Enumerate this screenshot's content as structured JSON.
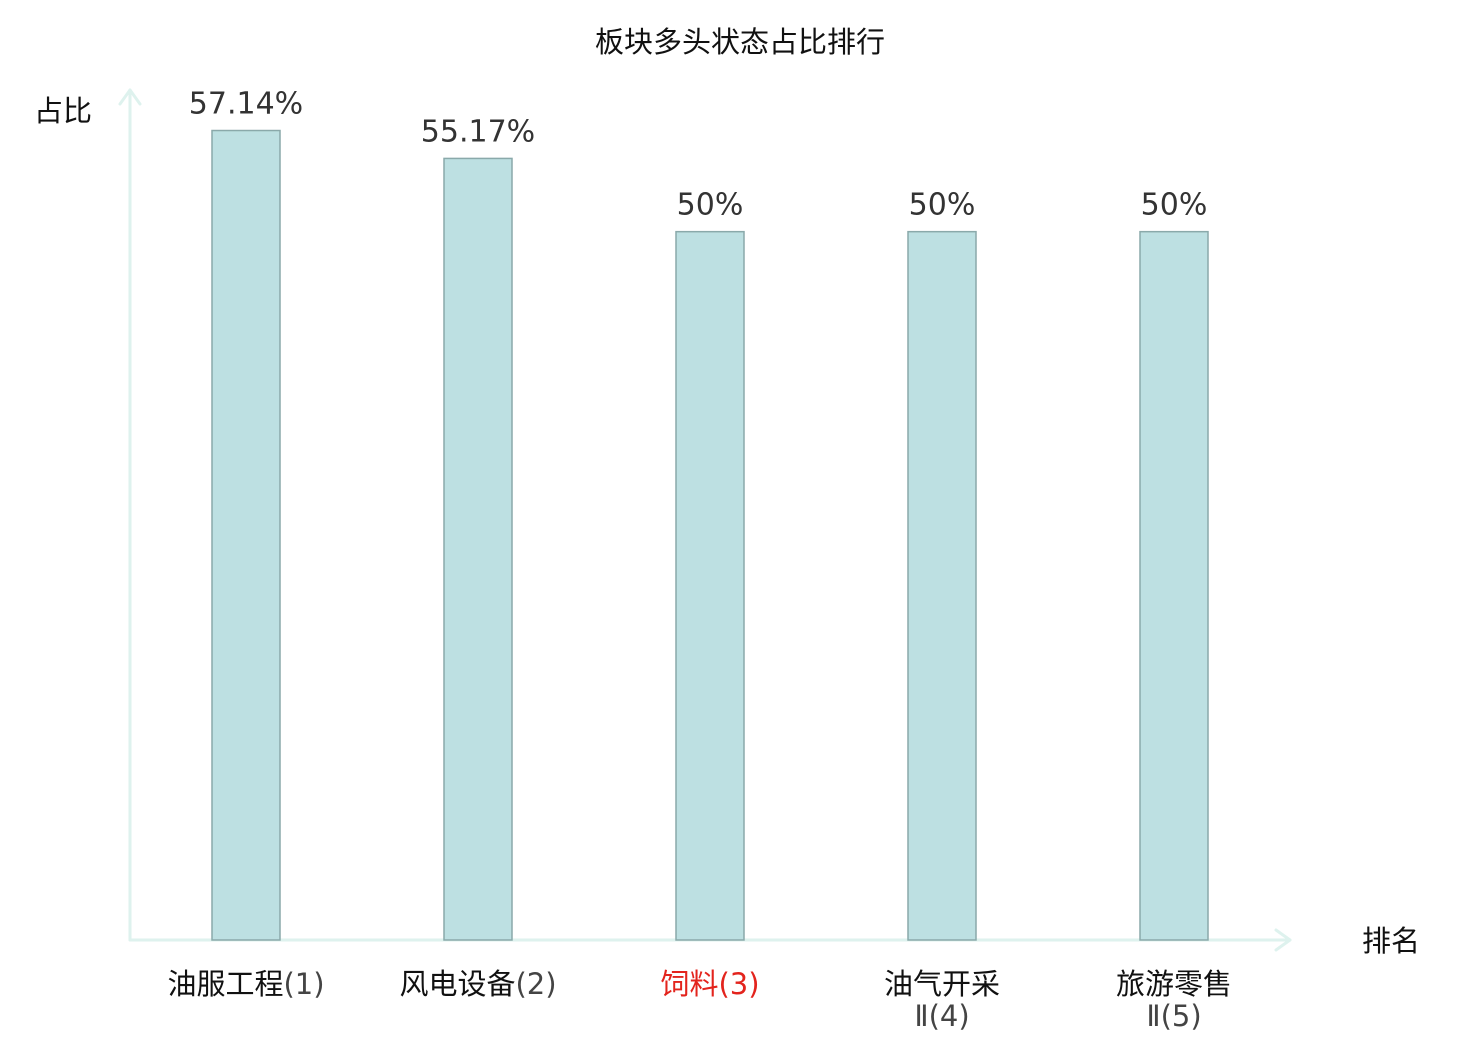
{
  "chart_data": {
    "type": "bar",
    "title": "板块多头状态占比排行",
    "xlabel": "排名",
    "ylabel": "占比",
    "categories": [
      "油服工程(1)",
      "风电设备(2)",
      "饲料(3)",
      "油气开采Ⅱ(4)",
      "旅游零售Ⅱ(5)"
    ],
    "values": [
      57.14,
      55.17,
      50,
      50,
      50
    ],
    "data_labels": [
      "57.14%",
      "55.17%",
      "50%",
      "50%",
      "50%"
    ],
    "ylim": [
      0,
      60
    ],
    "grid": false,
    "highlight_index": 2,
    "colors": {
      "bar_fill": "#bde0e2",
      "bar_stroke": "#8aa9aa",
      "axis": "#def2ee",
      "text": "#111111",
      "rank_text": "#444444",
      "value_text": "#333333",
      "highlight_label": "#e3241d"
    }
  }
}
